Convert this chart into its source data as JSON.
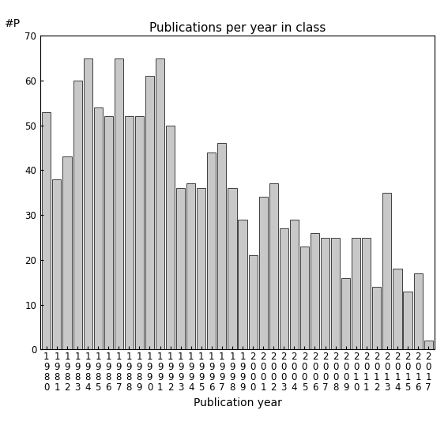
{
  "title": "Publications per year in class",
  "xlabel": "Publication year",
  "ylabel": "#P",
  "bar_color": "#c8c8c8",
  "bar_edge_color": "#000000",
  "bar_edge_width": 0.5,
  "ylim": [
    0,
    70
  ],
  "yticks": [
    0,
    10,
    20,
    30,
    40,
    50,
    60,
    70
  ],
  "years": [
    1980,
    1981,
    1982,
    1983,
    1984,
    1985,
    1986,
    1987,
    1988,
    1989,
    1990,
    1991,
    1992,
    1993,
    1994,
    1995,
    1996,
    1997,
    1998,
    1999,
    2000,
    2001,
    2002,
    2003,
    2004,
    2005,
    2006,
    2007,
    2008,
    2009,
    2010,
    2011,
    2012,
    2013,
    2014,
    2015,
    2016,
    2017
  ],
  "values": [
    53,
    38,
    43,
    60,
    65,
    54,
    52,
    65,
    52,
    52,
    61,
    65,
    50,
    36,
    37,
    36,
    44,
    46,
    36,
    29,
    21,
    34,
    37,
    27,
    29,
    23,
    26,
    25,
    25,
    16,
    25,
    25,
    14,
    35,
    18,
    13,
    17,
    2
  ],
  "background_color": "#ffffff",
  "title_fontsize": 11,
  "axis_fontsize": 10,
  "tick_fontsize": 8.5
}
